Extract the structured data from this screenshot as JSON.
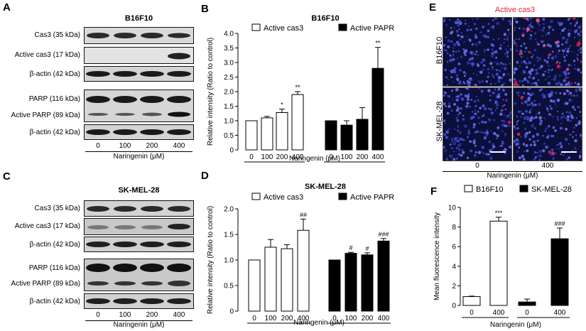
{
  "panels": {
    "A": {
      "letter": "A",
      "title": "B16F10",
      "rows": [
        "Cas3 (35 kDa)",
        "Active cas3 (17 kDa)",
        "β-actin (42 kDa)",
        "PARP (116 kDa)",
        "Active PARP (89 kDa)",
        "β-actin (42 kDa)"
      ],
      "doses": [
        "0",
        "100",
        "200",
        "400"
      ],
      "xlabel": "Naringenin (μM)"
    },
    "C": {
      "letter": "C",
      "title": "SK-MEL-28",
      "rows": [
        "Cas3 (35 kDa)",
        "Active cas3 (17 kDa)",
        "β-actin (42 kDa)",
        "PARP (116 kDa)",
        "Active PARP (89 kDa)",
        "β-actin (42 kDa)"
      ],
      "doses": [
        "0",
        "100",
        "200",
        "400"
      ],
      "xlabel": "Naringenin (μM)"
    },
    "E": {
      "letter": "E",
      "title": "Active cas3",
      "rows": [
        "B16F10",
        "SK-MEL-28"
      ],
      "doses": [
        "0",
        "400"
      ],
      "xlabel": "Naringenin (μM)"
    }
  },
  "colors": {
    "open": "#ffffff",
    "filled": "#000000",
    "title_red": "#e8213a",
    "micro_bg": "#0c0f3a"
  },
  "chart_data": [
    {
      "letter": "B",
      "type": "bar",
      "title": "B16F10",
      "ylabel": "Relative intensity (Ratio to control)",
      "xlabel": "Naringenin (μM)",
      "ylim": [
        0,
        4.0
      ],
      "yticks": [
        "0",
        "0.5",
        "1.0",
        "1.5",
        "2.0",
        "2.5",
        "3.0",
        "3.5",
        "4.0"
      ],
      "categories": [
        "0",
        "100",
        "200",
        "400"
      ],
      "series": [
        {
          "name": "Active cas3",
          "fill": "open",
          "values": [
            1.0,
            1.1,
            1.28,
            1.9
          ],
          "errors": [
            0,
            0.05,
            0.12,
            0.1
          ],
          "marks": [
            "",
            "",
            "*",
            "**"
          ]
        },
        {
          "name": "Active PAPR",
          "fill": "filled",
          "values": [
            1.0,
            0.85,
            1.05,
            2.8
          ],
          "errors": [
            0,
            0.15,
            0.4,
            0.72
          ],
          "marks": [
            "",
            "",
            "",
            "**"
          ]
        }
      ]
    },
    {
      "letter": "D",
      "type": "bar",
      "title": "SK-MEL-28",
      "ylabel": "Relative intensity (Ratio to control)",
      "xlabel": "Naringenin (μM)",
      "ylim": [
        0,
        2.0
      ],
      "yticks": [
        "0",
        "0.5",
        "1.0",
        "1.5",
        "2.0"
      ],
      "categories": [
        "0",
        "100",
        "200",
        "400"
      ],
      "series": [
        {
          "name": "Active cas3",
          "fill": "open",
          "values": [
            1.0,
            1.25,
            1.22,
            1.58
          ],
          "errors": [
            0,
            0.15,
            0.08,
            0.22
          ],
          "marks": [
            "",
            "",
            "",
            "##"
          ]
        },
        {
          "name": "Active PAPR",
          "fill": "filled",
          "values": [
            1.0,
            1.13,
            1.1,
            1.37
          ],
          "errors": [
            0,
            0.02,
            0.04,
            0.05
          ],
          "marks": [
            "",
            "#",
            "#",
            "###"
          ]
        }
      ]
    },
    {
      "letter": "F",
      "type": "bar",
      "title": "",
      "ylabel": "Mean fluorescence intensity",
      "xlabel": "Naringenin (μM)",
      "ylim": [
        0,
        10
      ],
      "yticks": [
        "0",
        "2",
        "4",
        "6",
        "8",
        "10"
      ],
      "categories": [
        "0",
        "400"
      ],
      "series": [
        {
          "name": "B16F10",
          "fill": "open",
          "values": [
            0.9,
            8.6
          ],
          "errors": [
            0.05,
            0.4
          ],
          "marks": [
            "",
            "***"
          ]
        },
        {
          "name": "SK-MEL-28",
          "fill": "filled",
          "values": [
            0.35,
            6.8
          ],
          "errors": [
            0.3,
            1.1
          ],
          "marks": [
            "",
            "###"
          ]
        }
      ]
    }
  ]
}
